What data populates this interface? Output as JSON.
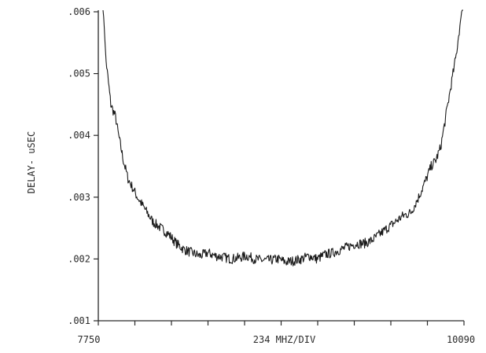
{
  "chart_data": {
    "type": "line",
    "title": "",
    "xlabel": "234 MHZ/DIV",
    "ylabel": "DELAY- uSEC",
    "x_start_label": "7750",
    "x_end_label": "10090",
    "xlim": [
      7750,
      10090
    ],
    "ylim": [
      0.001,
      0.006
    ],
    "x_divisions": 10,
    "y_tick_values": [
      0.001,
      0.002,
      0.003,
      0.004,
      0.005,
      0.006
    ],
    "y_tick_labels": [
      ".001",
      ".002",
      ".003",
      ".004",
      ".005",
      ".006"
    ],
    "grid": false,
    "legend": "none",
    "line_color": "#1a1a1a",
    "series": [
      {
        "x": [
          7780,
          7800,
          7830,
          7860,
          7880,
          7910,
          7940,
          7980,
          8000,
          8050,
          8100,
          8150,
          8200,
          8250,
          8300,
          8350,
          8400,
          8450,
          8500,
          8550,
          8600,
          8650,
          8700,
          8750,
          8800,
          8850,
          8900,
          8950,
          9000,
          9050,
          9100,
          9150,
          9200,
          9250,
          9300,
          9350,
          9400,
          9450,
          9500,
          9550,
          9600,
          9650,
          9700,
          9750,
          9800,
          9850,
          9880,
          9910,
          9940,
          9960,
          9980,
          10000,
          10020,
          10040,
          10060,
          10075,
          10085
        ],
        "y": [
          0.0061,
          0.0052,
          0.0045,
          0.0043,
          0.004,
          0.0036,
          0.0033,
          0.0031,
          0.003,
          0.0028,
          0.0026,
          0.0025,
          0.0024,
          0.00225,
          0.00215,
          0.0021,
          0.00205,
          0.0021,
          0.00205,
          0.00203,
          0.002,
          0.00202,
          0.00205,
          0.002,
          0.00198,
          0.00198,
          0.002,
          0.00195,
          0.00197,
          0.002,
          0.00205,
          0.002,
          0.00207,
          0.0021,
          0.00215,
          0.0022,
          0.00225,
          0.00225,
          0.0023,
          0.0024,
          0.0025,
          0.0026,
          0.0027,
          0.00275,
          0.003,
          0.0033,
          0.0035,
          0.0036,
          0.0038,
          0.0041,
          0.0044,
          0.0047,
          0.005,
          0.0053,
          0.0057,
          0.006,
          0.0061
        ]
      }
    ]
  }
}
